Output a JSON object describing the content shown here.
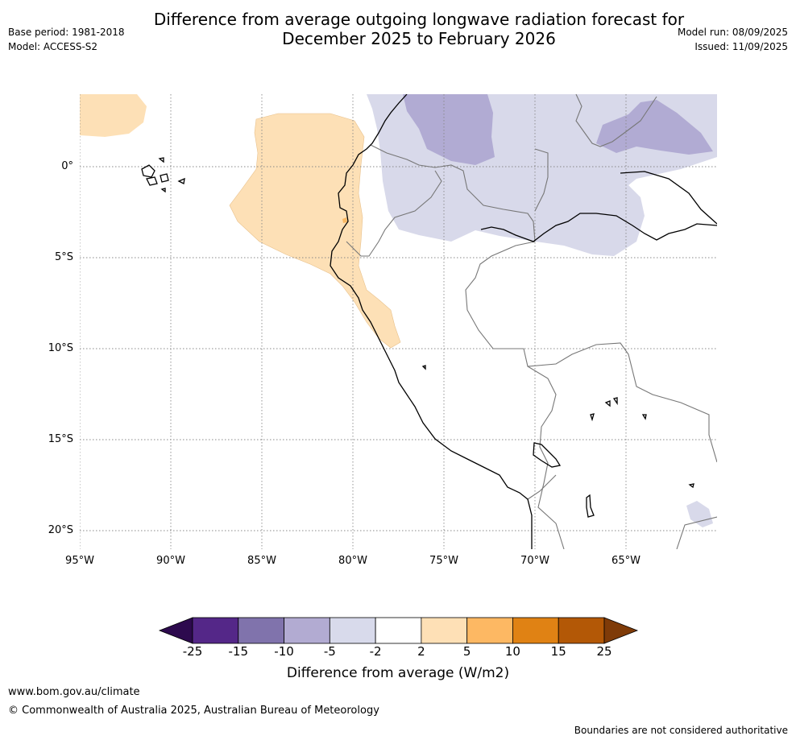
{
  "header": {
    "title_line1": "Difference from average outgoing longwave radiation forecast for",
    "title_line2": "December 2025 to February 2026",
    "base_period": "Base period: 1981-2018",
    "model": "Model: ACCESS-S2",
    "model_run": "Model run: 08/09/2025",
    "issued": "Issued: 11/09/2025"
  },
  "map": {
    "lat_labels": [
      "0°",
      "5°S",
      "10°S",
      "15°S",
      "20°S"
    ],
    "lon_labels": [
      "95°W",
      "90°W",
      "85°W",
      "80°W",
      "75°W",
      "70°W",
      "65°W"
    ],
    "anomaly_colors": {
      "positive_2_5": "#fde0b6",
      "positive_5_10": "#f9b862",
      "negative_2_5": "#d8d9ea",
      "negative_5_10": "#b1abd3",
      "coast": "#000000",
      "borders": "#777777",
      "grid": "#888888"
    }
  },
  "colorbar": {
    "ticks": [
      "-25",
      "-15",
      "-10",
      "-5",
      "-2",
      "2",
      "5",
      "10",
      "15",
      "25"
    ],
    "colors": [
      "#2d0a4e",
      "#542788",
      "#8073ac",
      "#b2abd2",
      "#d8daeb",
      "#ffffff",
      "#fee0b6",
      "#fdb863",
      "#e08214",
      "#b35806",
      "#7f3b08"
    ],
    "label": "Difference from average (W/m2)"
  },
  "footer": {
    "url": "www.bom.gov.au/climate",
    "copyright": "© Commonwealth of Australia 2025, Australian Bureau of Meteorology",
    "disclaimer": "Boundaries are not considered authoritative"
  }
}
